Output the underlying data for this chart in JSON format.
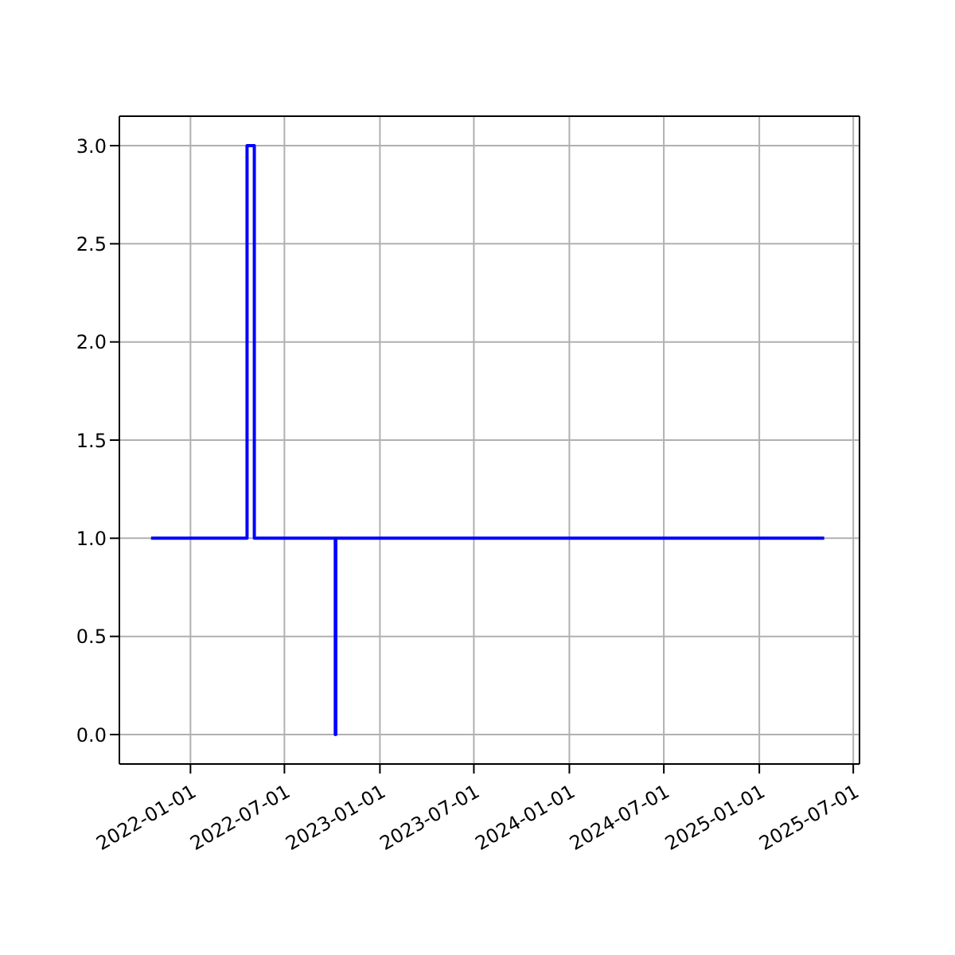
{
  "chart_data": {
    "type": "step",
    "x": [
      "2021-10-17",
      "2022-04-20",
      "2022-05-04",
      "2022-10-07",
      "2022-10-08",
      "2025-05-06"
    ],
    "series": [
      {
        "color": "#0000ff",
        "values": [
          1,
          3,
          1,
          0,
          1,
          1
        ]
      }
    ],
    "xlim": [
      "2021-08-17",
      "2025-07-13"
    ],
    "xticks": [
      "2022-01-01",
      "2022-07-01",
      "2023-01-01",
      "2023-07-01",
      "2024-01-01",
      "2024-07-01",
      "2025-01-01",
      "2025-07-01"
    ],
    "ylim": [
      -0.15,
      3.15
    ],
    "yticks": [
      {
        "value": 0,
        "label": "0.0"
      },
      {
        "value": 0.5,
        "label": "0.5"
      },
      {
        "value": 1,
        "label": "1.0"
      },
      {
        "value": 1.5,
        "label": "1.5"
      },
      {
        "value": 2,
        "label": "2.0"
      },
      {
        "value": 2.5,
        "label": "2.5"
      },
      {
        "value": 3,
        "label": "3.0"
      }
    ],
    "grid": true,
    "legend": false,
    "marker": "none",
    "line_style": "solid"
  }
}
